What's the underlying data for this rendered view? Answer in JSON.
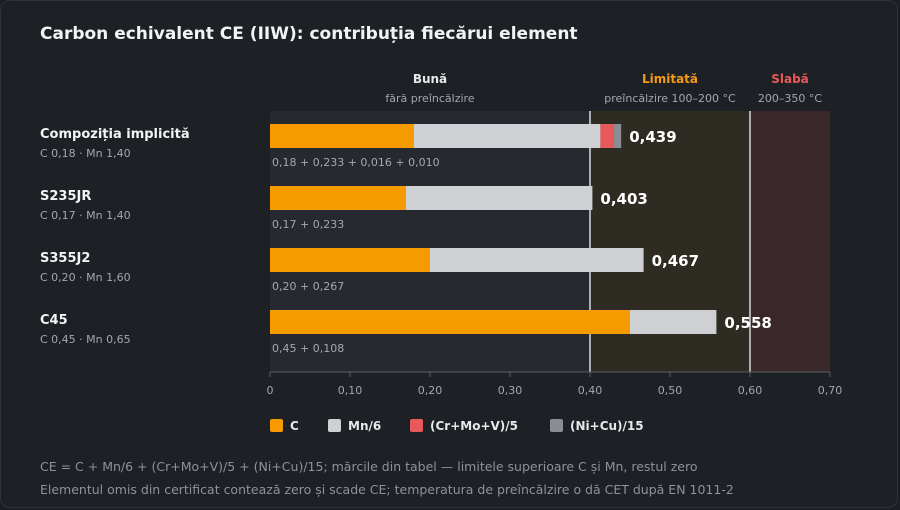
{
  "title": "Carbon echivalent CE (IIW): contribuția fiecărui element",
  "zones": [
    {
      "label": "Bună",
      "sublabel": "fără preîncălzire",
      "from": 0,
      "to": 0.4,
      "color": "#e6e8eb",
      "fill": "#262a30"
    },
    {
      "label": "Limitată",
      "sublabel": "preîncălzire 100–200 °C",
      "from": 0.4,
      "to": 0.6,
      "color": "#f59b16",
      "fill": "#2e2b22"
    },
    {
      "label": "Slabă",
      "sublabel": "200–350 °C",
      "from": 0.6,
      "to": 0.7,
      "color": "#e8595b",
      "fill": "#3a272a"
    }
  ],
  "chart_data": {
    "type": "bar",
    "orientation": "horizontal",
    "stacked": true,
    "xlim": [
      0,
      0.7
    ],
    "xticks": [
      "0",
      "0,10",
      "0,20",
      "0,30",
      "0,40",
      "0,50",
      "0,60",
      "0,70"
    ],
    "xtick_values": [
      0,
      0.1,
      0.2,
      0.3,
      0.4,
      0.5,
      0.6,
      0.7
    ],
    "thresholds": [
      0.4,
      0.6
    ],
    "legend_position": "bottom",
    "series": [
      {
        "name": "C",
        "color": "#f59b00"
      },
      {
        "name": "Mn/6",
        "color": "#cfd0d4"
      },
      {
        "name": "(Cr+Mo+V)/5",
        "color": "#e8595b"
      },
      {
        "name": "(Ni+Cu)/15",
        "color": "#8a8d93"
      }
    ],
    "rows": [
      {
        "name": "Compoziția implicită",
        "sub": "C 0,18 · Mn 1,40",
        "values": [
          0.18,
          0.233,
          0.016,
          0.01
        ],
        "breakdown": "0,18 + 0,233 + 0,016 + 0,010",
        "total": "0,439"
      },
      {
        "name": "S235JR",
        "sub": "C 0,17 · Mn 1,40",
        "values": [
          0.17,
          0.233,
          0,
          0
        ],
        "breakdown": "0,17 + 0,233",
        "total": "0,403"
      },
      {
        "name": "S355J2",
        "sub": "C 0,20 · Mn 1,60",
        "values": [
          0.2,
          0.267,
          0,
          0
        ],
        "breakdown": "0,20 + 0,267",
        "total": "0,467"
      },
      {
        "name": "C45",
        "sub": "C 0,45 · Mn 0,65",
        "values": [
          0.45,
          0.108,
          0,
          0
        ],
        "breakdown": "0,45 + 0,108",
        "total": "0,558"
      }
    ]
  },
  "footnotes": [
    "CE = C + Mn/6 + (Cr+Mo+V)/5 + (Ni+Cu)/15; mărcile din tabel — limitele superioare C și Mn, restul zero",
    "Elementul omis din certificat contează zero și scade CE; temperatura de preîncălzire o dă CET după EN 1011-2"
  ]
}
